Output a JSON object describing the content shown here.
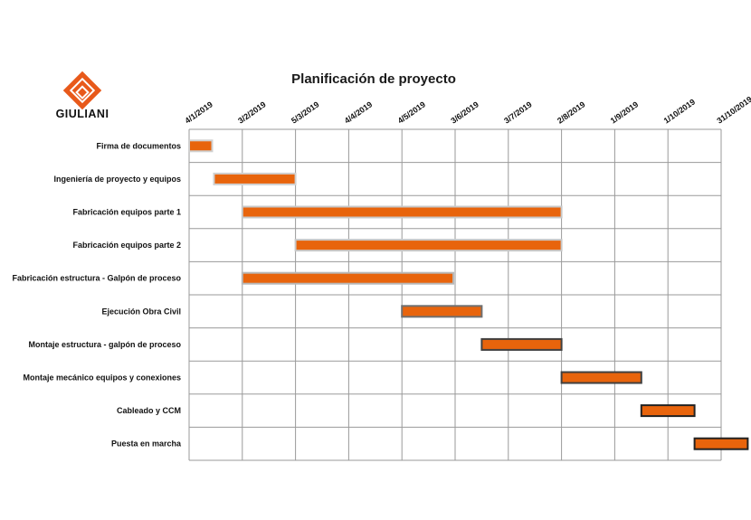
{
  "brand": {
    "name": "GIULIANI",
    "accent": "#e8591a"
  },
  "chart_data": {
    "type": "gantt",
    "title": "Planificación de proyecto",
    "ticks": [
      "4/1/2019",
      "3/2/2019",
      "5/3/2019",
      "4/4/2019",
      "4/5/2019",
      "3/6/2019",
      "3/7/2019",
      "2/8/2019",
      "1/9/2019",
      "1/10/2019",
      "31/10/2019"
    ],
    "grid": true,
    "bar_color": "#e8640c",
    "tasks": [
      {
        "name": "Firma de documentos",
        "start": "2019-01-04",
        "end": "2019-01-17",
        "outline": "#d0d0d0"
      },
      {
        "name": "Ingeniería de proyecto y equipos",
        "start": "2019-01-18",
        "end": "2019-03-05",
        "outline": "#d0d0d0"
      },
      {
        "name": "Fabricación equipos parte 1",
        "start": "2019-02-03",
        "end": "2019-08-02",
        "outline": "#c8c8c8"
      },
      {
        "name": "Fabricación equipos parte 2",
        "start": "2019-03-05",
        "end": "2019-08-02",
        "outline": "#c8c8c8"
      },
      {
        "name": "Fabricación estructura - Galpón de proceso",
        "start": "2019-02-03",
        "end": "2019-06-02",
        "outline": "#b8b8b8"
      },
      {
        "name": "Ejecución Obra Civil",
        "start": "2019-05-04",
        "end": "2019-06-18",
        "outline": "#707070"
      },
      {
        "name": "Montaje estructura - galpón de proceso",
        "start": "2019-06-18",
        "end": "2019-08-02",
        "outline": "#404040"
      },
      {
        "name": "Montaje mecánico equipos y conexiones",
        "start": "2019-08-02",
        "end": "2019-09-16",
        "outline": "#404040"
      },
      {
        "name": "Cableado y CCM",
        "start": "2019-09-16",
        "end": "2019-10-16",
        "outline": "#222222"
      },
      {
        "name": "Puesta en marcha",
        "start": "2019-10-16",
        "end": "2019-11-15",
        "outline": "#222222"
      }
    ]
  }
}
